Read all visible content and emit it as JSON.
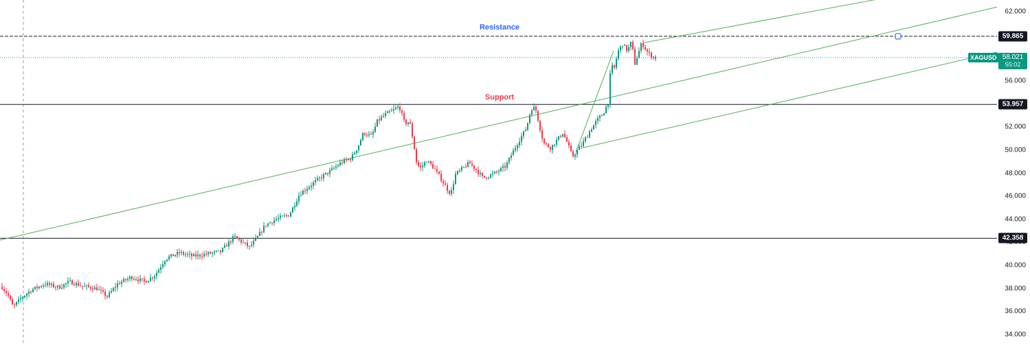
{
  "symbol": "XAGUSD",
  "colors": {
    "up": "#089981",
    "down": "#f23645",
    "trendline": "#4caf50",
    "level": "#131722",
    "resistance_text": "#2962ff",
    "support_text": "#f23645",
    "price_line": "#089981",
    "crosshair": "#9598a1"
  },
  "annotations": {
    "resistance": "Resistance",
    "support": "Support"
  },
  "last_price": {
    "value": "58.021",
    "countdown": "55:02"
  },
  "chart_data": {
    "type": "candlestick",
    "y_axis": {
      "min": 34,
      "max": 62,
      "ticks": [
        "34.000",
        "36.000",
        "38.000",
        "40.000",
        "42.000",
        "44.000",
        "46.000",
        "48.000",
        "50.000",
        "52.000",
        "54.000",
        "56.000",
        "58.000",
        "60.000",
        "62.000"
      ]
    },
    "levels": [
      {
        "name": "resistance",
        "value": 59.865,
        "label": "59.865",
        "style": "dashed"
      },
      {
        "name": "support",
        "value": 53.957,
        "label": "53.957",
        "style": "solid"
      },
      {
        "name": "floor",
        "value": 42.358,
        "label": "42.358",
        "style": "solid"
      }
    ],
    "price_trajectory": [
      [
        0,
        38.3
      ],
      [
        10,
        37.5
      ],
      [
        18,
        36.4
      ],
      [
        30,
        37.2
      ],
      [
        45,
        37.9
      ],
      [
        65,
        38.4
      ],
      [
        85,
        38.1
      ],
      [
        100,
        38.6
      ],
      [
        120,
        38.2
      ],
      [
        140,
        38.0
      ],
      [
        155,
        37.3
      ],
      [
        170,
        38.4
      ],
      [
        190,
        39.0
      ],
      [
        210,
        38.6
      ],
      [
        225,
        39.2
      ],
      [
        240,
        40.6
      ],
      [
        260,
        41.1
      ],
      [
        280,
        40.8
      ],
      [
        300,
        41.0
      ],
      [
        320,
        41.2
      ],
      [
        340,
        42.5
      ],
      [
        352,
        42.0
      ],
      [
        362,
        41.6
      ],
      [
        372,
        42.3
      ],
      [
        385,
        43.5
      ],
      [
        400,
        44.0
      ],
      [
        420,
        44.4
      ],
      [
        435,
        46.2
      ],
      [
        450,
        46.9
      ],
      [
        465,
        47.6
      ],
      [
        480,
        48.2
      ],
      [
        495,
        48.9
      ],
      [
        510,
        49.3
      ],
      [
        520,
        50.3
      ],
      [
        528,
        51.5
      ],
      [
        540,
        51.2
      ],
      [
        548,
        52.5
      ],
      [
        560,
        53.1
      ],
      [
        570,
        53.4
      ],
      [
        580,
        53.8
      ],
      [
        588,
        52.3
      ],
      [
        595,
        52.5
      ],
      [
        600,
        50.9
      ],
      [
        605,
        49.0
      ],
      [
        610,
        48.4
      ],
      [
        620,
        49.1
      ],
      [
        630,
        48.5
      ],
      [
        640,
        47.6
      ],
      [
        650,
        46.6
      ],
      [
        655,
        46.2
      ],
      [
        662,
        47.9
      ],
      [
        672,
        48.4
      ],
      [
        682,
        48.9
      ],
      [
        692,
        48.3
      ],
      [
        702,
        47.6
      ],
      [
        712,
        47.8
      ],
      [
        722,
        48.1
      ],
      [
        735,
        48.6
      ],
      [
        745,
        49.8
      ],
      [
        755,
        50.9
      ],
      [
        765,
        51.9
      ],
      [
        772,
        53.6
      ],
      [
        778,
        53.7
      ],
      [
        783,
        52.4
      ],
      [
        790,
        50.6
      ],
      [
        800,
        50.2
      ],
      [
        810,
        50.9
      ],
      [
        818,
        51.5
      ],
      [
        825,
        50.6
      ],
      [
        832,
        49.4
      ],
      [
        838,
        49.9
      ],
      [
        845,
        50.4
      ],
      [
        852,
        51.1
      ],
      [
        860,
        51.9
      ],
      [
        868,
        52.6
      ],
      [
        876,
        53.1
      ],
      [
        884,
        54.1
      ],
      [
        888,
        57.3
      ],
      [
        893,
        57.1
      ],
      [
        898,
        58.5
      ],
      [
        905,
        59.2
      ],
      [
        912,
        58.6
      ],
      [
        918,
        59.4
      ],
      [
        923,
        57.5
      ],
      [
        928,
        58.4
      ],
      [
        933,
        59.3
      ],
      [
        940,
        58.6
      ],
      [
        946,
        58.2
      ],
      [
        953,
        58.0
      ]
    ],
    "trendlines": [
      {
        "name": "channel-mid",
        "from": [
          0,
          42.2
        ],
        "to": [
          1451,
          62.4
        ]
      },
      {
        "name": "channel-lower",
        "from": [
          848,
          50.2
        ],
        "to": [
          1451,
          58.5
        ]
      },
      {
        "name": "channel-upper",
        "from": [
          936,
          59.3
        ],
        "to": [
          1451,
          65.0
        ]
      },
      {
        "name": "breakout-leg",
        "from": [
          838,
          49.8
        ],
        "to": [
          893,
          58.6
        ]
      }
    ],
    "vertical_marker_x": 34,
    "level_marker": {
      "level": "resistance",
      "x": 1307
    }
  }
}
